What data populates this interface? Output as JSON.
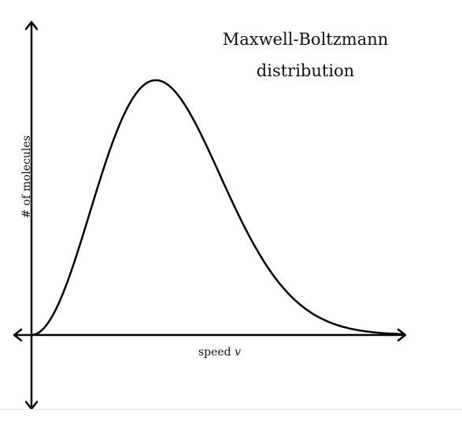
{
  "title": {
    "line1": "Maxwell-Boltzmann",
    "line2": "distribution"
  },
  "axes": {
    "x_label": "speed",
    "x_variable": "v",
    "y_label": "# of molecules"
  }
}
